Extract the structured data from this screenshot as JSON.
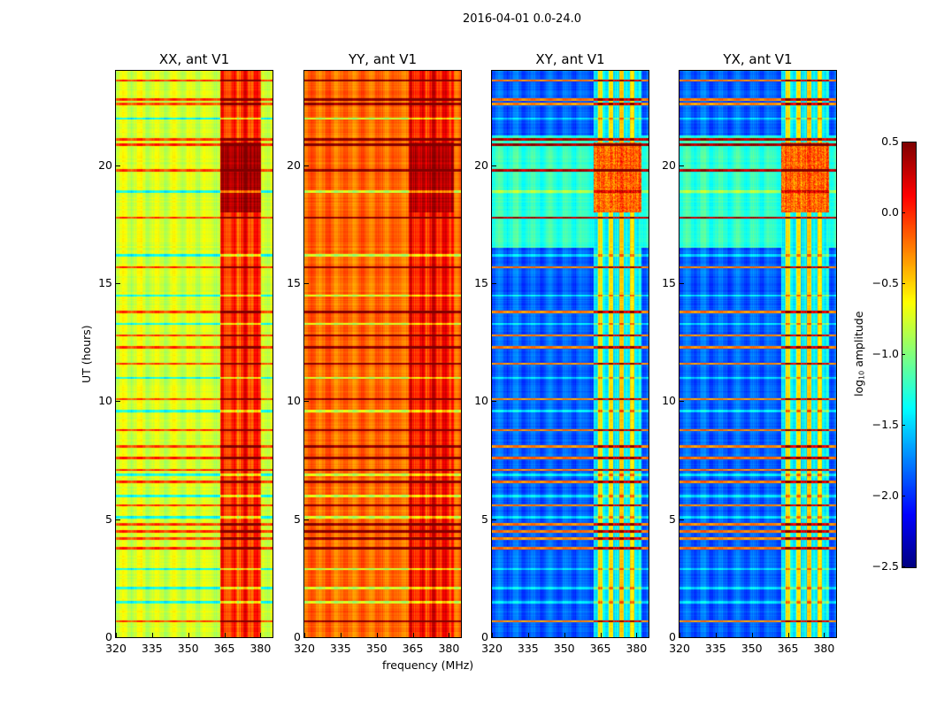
{
  "suptitle": "2016-04-01 0.0-24.0",
  "chart_data": {
    "type": "heatmap",
    "xlabel": "frequency (MHz)",
    "ylabel": "UT (hours)",
    "xlim": [
      320,
      385
    ],
    "ylim": [
      0,
      24
    ],
    "xticks": [
      320,
      335,
      350,
      365,
      380
    ],
    "yticks": [
      0,
      5,
      10,
      15,
      20
    ],
    "colormap": "jet",
    "colorbar": {
      "label_main": "log",
      "label_sub": "10",
      "label_rest": " amplitude",
      "range": [
        -2.5,
        0.5
      ],
      "ticks": [
        "0.5",
        "0.0",
        "−0.5",
        "−1.0",
        "−1.5",
        "−2.0",
        "−2.5"
      ]
    },
    "panels": [
      {
        "title": "XX, ant V1",
        "base": -0.75,
        "band_range": [
          363,
          380
        ],
        "band_level": -0.05,
        "peak_hours": [
          18,
          21
        ],
        "peak_level": 0.35
      },
      {
        "title": "YY, ant V1",
        "base": -0.2,
        "band_range": [
          363,
          382
        ],
        "band_level": 0.05,
        "peak_hours": [
          18,
          21
        ],
        "peak_level": 0.3
      },
      {
        "title": "XY, ant V1",
        "base": -1.85,
        "band_range": [
          362,
          382
        ],
        "band_level": -0.9,
        "peak_hours": [
          18,
          21
        ],
        "peak_level": 0.0
      },
      {
        "title": "YX, ant V1",
        "base": -1.85,
        "band_range": [
          362,
          382
        ],
        "band_level": -0.9,
        "peak_hours": [
          18,
          21
        ],
        "peak_level": 0.0
      }
    ],
    "rfi_hours_high": [
      0.7,
      3.8,
      4.2,
      4.5,
      4.8,
      5.6,
      6.6,
      7.1,
      7.6,
      8.1,
      8.8,
      10.1,
      11.6,
      12.3,
      12.8,
      13.8,
      15.7,
      17.8,
      19.8,
      20.9,
      21.1,
      22.6,
      22.8,
      23.6
    ],
    "rfi_hours_low": [
      1.5,
      2.1,
      2.9,
      5.1,
      6.0,
      6.9,
      9.6,
      11.0,
      13.3,
      14.5,
      16.2,
      18.9,
      22.0
    ]
  }
}
